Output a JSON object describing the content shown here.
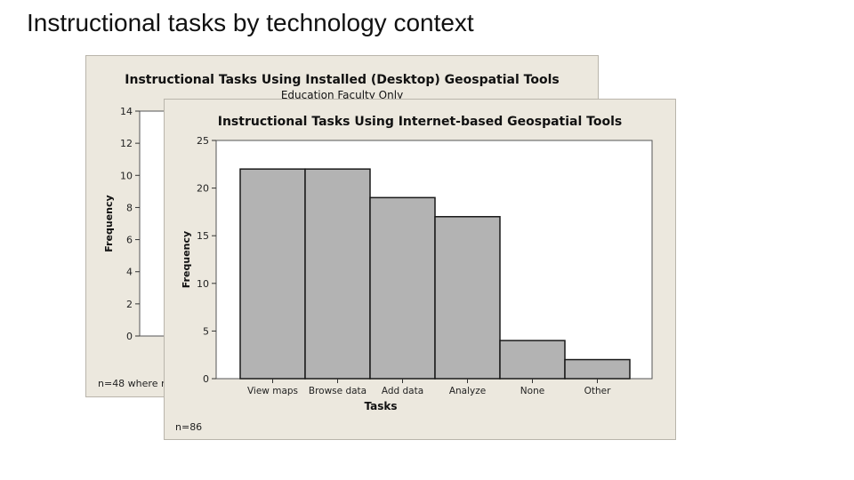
{
  "slide": {
    "title": "Instructional tasks by technology context"
  },
  "back_chart_panel": {
    "title": "Instructional Tasks Using Installed (Desktop) Geospatial Tools",
    "subtitle": "Education Faculty Only",
    "footnote": "n=48 where r"
  },
  "front_chart_panel": {
    "title": "Instructional Tasks Using Internet-based Geospatial Tools",
    "footnote": "n=86"
  },
  "colors": {
    "panel_bg": "#ece8de",
    "bar_fill": "#b3b3b3",
    "bar_stroke": "#1a1a1a",
    "plot_bg": "#ffffff"
  },
  "chart_data": [
    {
      "type": "bar",
      "title": "Instructional Tasks Using Installed (Desktop) Geospatial Tools",
      "subtitle": "Education Faculty Only",
      "ylabel": "Frequency",
      "ylim": [
        0,
        14
      ],
      "yticks": [
        0,
        2,
        4,
        6,
        8,
        10,
        12,
        14
      ],
      "note": "n=48 where r"
    },
    {
      "type": "bar",
      "title": "Instructional Tasks Using Internet-based Geospatial Tools",
      "xlabel": "Tasks",
      "ylabel": "Frequency",
      "categories": [
        "View maps",
        "Browse data",
        "Add data",
        "Analyze",
        "None",
        "Other"
      ],
      "values": [
        22,
        22,
        19,
        17,
        4,
        2
      ],
      "ylim": [
        0,
        25
      ],
      "yticks": [
        0,
        5,
        10,
        15,
        20,
        25
      ],
      "grid": false,
      "note": "n=86"
    }
  ]
}
